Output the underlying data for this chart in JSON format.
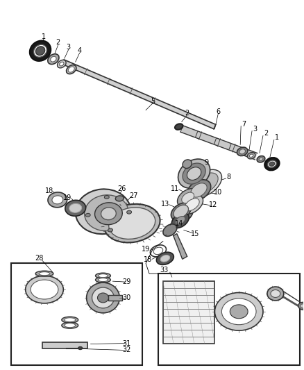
{
  "bg_color": "#ffffff",
  "lc": "#000000",
  "fig_width": 4.38,
  "fig_height": 5.33,
  "dpi": 100
}
